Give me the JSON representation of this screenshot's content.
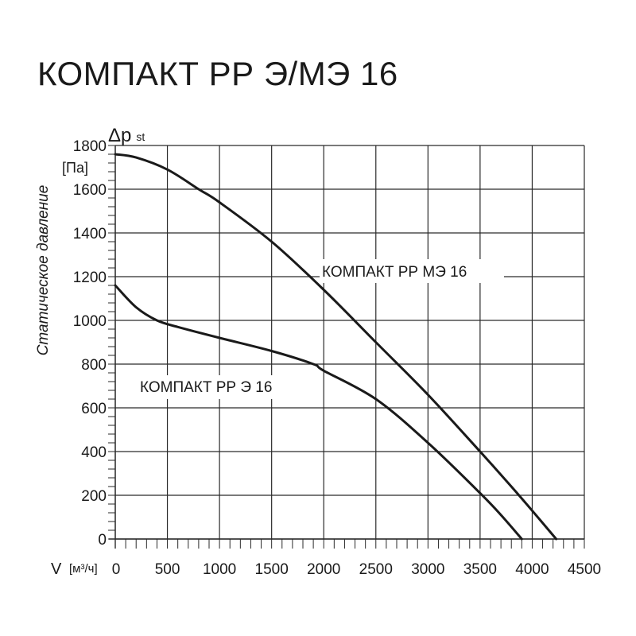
{
  "page": {
    "title": "КОМПАКТ РР Э/МЭ 16"
  },
  "chart_data": {
    "type": "line",
    "title": "КОМПАКТ РР Э/МЭ 16",
    "xlabel": "V",
    "xunit": "[м³/ч]",
    "ylabel": "Статическое давление",
    "ysymbol": "Δp",
    "ysubscript": "st",
    "yunit": "[Па]",
    "xlim": [
      0,
      4500
    ],
    "ylim": [
      0,
      1800
    ],
    "x_ticks": [
      0,
      500,
      1000,
      1500,
      2000,
      2500,
      3000,
      3500,
      4000,
      4500
    ],
    "y_ticks": [
      0,
      200,
      400,
      600,
      800,
      1000,
      1200,
      1400,
      1600,
      1800
    ],
    "grid": true,
    "series": [
      {
        "name": "КОМПАКТ РР МЭ 16",
        "x": [
          0,
          200,
          500,
          800,
          1000,
          1500,
          2000,
          2500,
          3000,
          3500,
          3800,
          4000,
          4230
        ],
        "y": [
          1760,
          1745,
          1690,
          1600,
          1540,
          1360,
          1140,
          900,
          660,
          400,
          240,
          130,
          0
        ]
      },
      {
        "name": "КОМПАКТ РР Э 16",
        "x": [
          0,
          200,
          400,
          600,
          1000,
          1500,
          1900,
          2000,
          2500,
          3000,
          3500,
          3700,
          3900
        ],
        "y": [
          1160,
          1060,
          1000,
          970,
          920,
          860,
          800,
          770,
          640,
          440,
          210,
          110,
          0
        ]
      }
    ]
  }
}
